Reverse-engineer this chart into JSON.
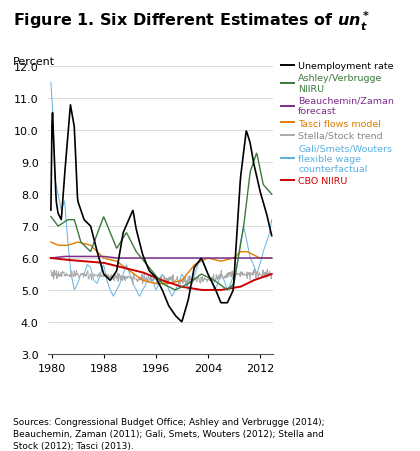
{
  "ylabel": "Percent",
  "xlim": [
    1979.5,
    2014.0
  ],
  "ylim": [
    3.0,
    12.2
  ],
  "yticks": [
    3.0,
    4.0,
    5.0,
    6.0,
    7.0,
    8.0,
    9.0,
    10.0,
    11.0,
    12.0
  ],
  "xticks": [
    1980,
    1988,
    1996,
    2004,
    2012
  ],
  "source_text": "Sources: Congressional Budget Office; Ashley and Verbrugge (2014);\nBeauchemin, Zaman (2011); Gali, Smets, Wouters (2012); Stella and\nStock (2012); Tasci (2013).",
  "colors": {
    "unemployment": "#000000",
    "ashley": "#3a7a3a",
    "beauchemin": "#7b2d8b",
    "tasci": "#e07b00",
    "stella": "#aaaaaa",
    "gali": "#5ab0e0",
    "cbo": "#cc0000"
  },
  "legend": [
    {
      "label": "Unemployment rate",
      "color": "#000000"
    },
    {
      "label": "Ashley/Verbrugge\nNIIRU",
      "color": "#3a7a3a"
    },
    {
      "label": "Beauchemin/Zaman\nforecast",
      "color": "#7b2d8b"
    },
    {
      "label": "Tasci flows model",
      "color": "#e07b00"
    },
    {
      "label": "Stella/Stock trend",
      "color": "#aaaaaa"
    },
    {
      "label": "Gali/Smets/Wouters\nflexible wage\ncounterfactual",
      "color": "#5ab0e0"
    },
    {
      "label": "CBO NIIRU",
      "color": "#cc0000"
    }
  ]
}
